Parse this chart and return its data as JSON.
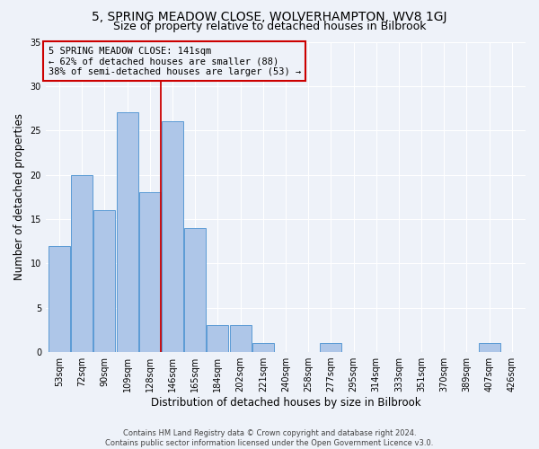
{
  "title": "5, SPRING MEADOW CLOSE, WOLVERHAMPTON, WV8 1GJ",
  "subtitle": "Size of property relative to detached houses in Bilbrook",
  "xlabel": "Distribution of detached houses by size in Bilbrook",
  "ylabel": "Number of detached properties",
  "footer_line1": "Contains HM Land Registry data © Crown copyright and database right 2024.",
  "footer_line2": "Contains public sector information licensed under the Open Government Licence v3.0.",
  "categories": [
    "53sqm",
    "72sqm",
    "90sqm",
    "109sqm",
    "128sqm",
    "146sqm",
    "165sqm",
    "184sqm",
    "202sqm",
    "221sqm",
    "240sqm",
    "258sqm",
    "277sqm",
    "295sqm",
    "314sqm",
    "333sqm",
    "351sqm",
    "370sqm",
    "389sqm",
    "407sqm",
    "426sqm"
  ],
  "values": [
    12,
    20,
    16,
    27,
    18,
    26,
    14,
    3,
    3,
    1,
    0,
    0,
    1,
    0,
    0,
    0,
    0,
    0,
    0,
    1,
    0
  ],
  "bar_color": "#aec6e8",
  "bar_edge_color": "#5b9bd5",
  "annotation_line1": "5 SPRING MEADOW CLOSE: 141sqm",
  "annotation_line2": "← 62% of detached houses are smaller (88)",
  "annotation_line3": "38% of semi-detached houses are larger (53) →",
  "vline_color": "#cc0000",
  "annotation_box_edge_color": "#cc0000",
  "ylim": [
    0,
    35
  ],
  "subject_vline_x": 4.5,
  "bg_color": "#eef2f9",
  "grid_color": "#ffffff",
  "title_fontsize": 10,
  "subtitle_fontsize": 9,
  "label_fontsize": 8.5,
  "tick_fontsize": 7,
  "annotation_fontsize": 7.5,
  "footer_fontsize": 6
}
